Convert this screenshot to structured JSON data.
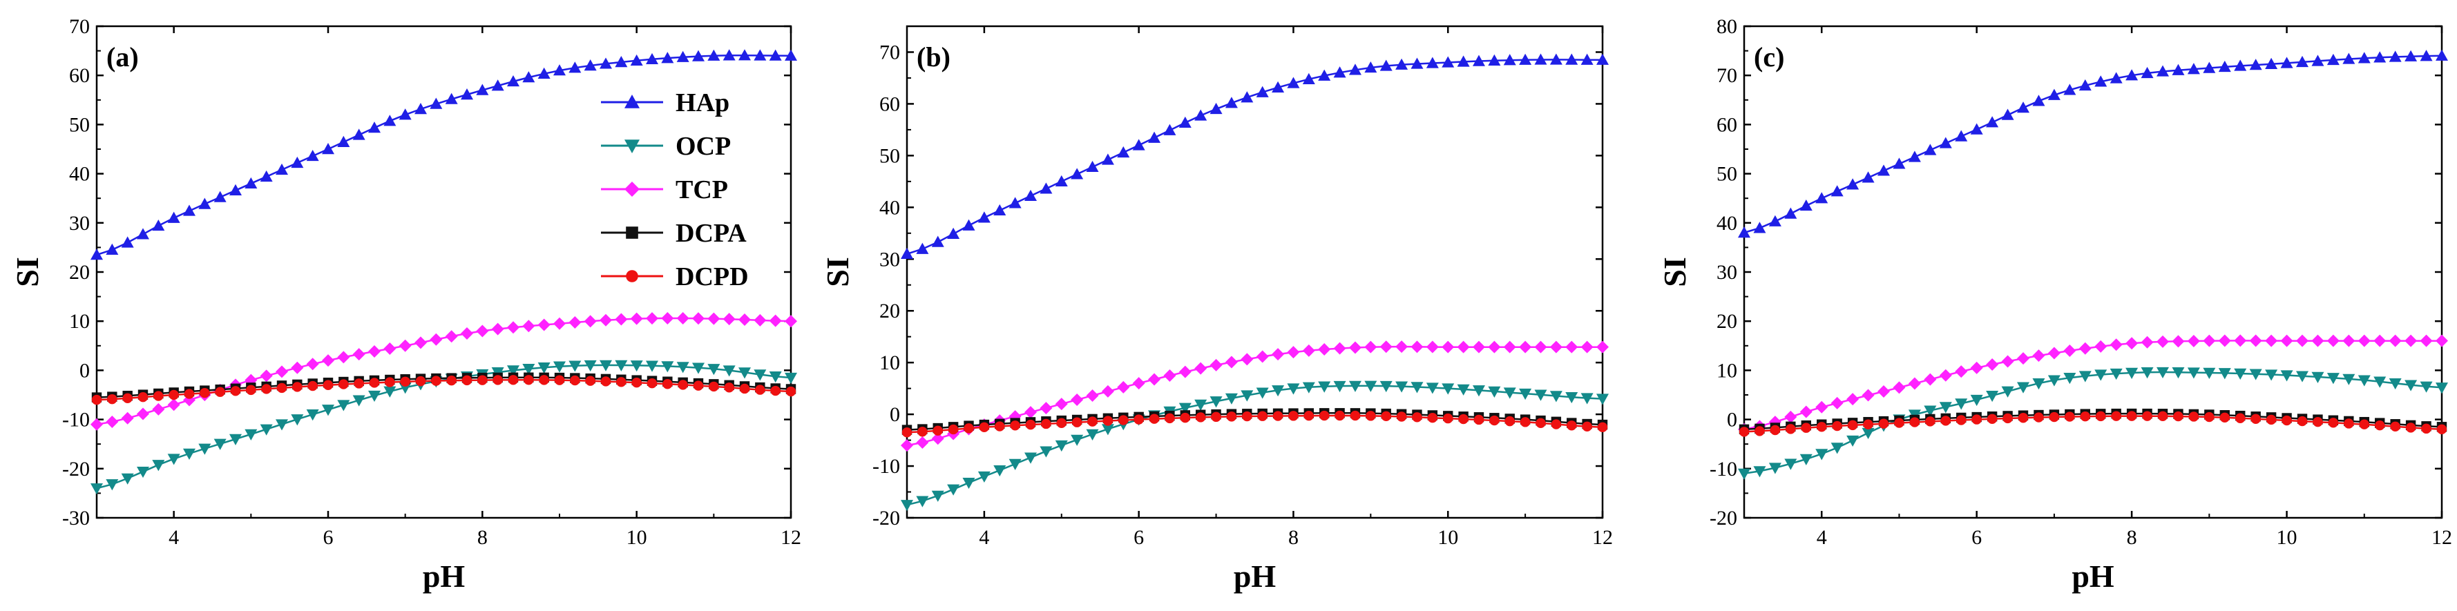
{
  "chart_data": [
    {
      "type": "line",
      "panel_label": "(a)",
      "xlabel": "pH",
      "ylabel": "SI",
      "xlim": [
        3,
        12
      ],
      "ylim": [
        -30,
        70
      ],
      "xticks": [
        4,
        6,
        8,
        10,
        12
      ],
      "yticks": [
        -30,
        -20,
        -10,
        0,
        10,
        20,
        30,
        40,
        50,
        60,
        70
      ],
      "legend": "upper-right",
      "series": [
        {
          "name": "HAp",
          "x": [
            3,
            4,
            5,
            6,
            7,
            8,
            9,
            10,
            11,
            12
          ],
          "values": [
            23.5,
            31,
            38,
            45,
            52,
            57,
            61,
            63,
            64,
            64
          ]
        },
        {
          "name": "OCP",
          "x": [
            3,
            4,
            5,
            6,
            7,
            8,
            9,
            10,
            11,
            12
          ],
          "values": [
            -24,
            -18,
            -13,
            -8,
            -3.5,
            -0.8,
            0.8,
            1,
            0.3,
            -1.5
          ]
        },
        {
          "name": "TCP",
          "x": [
            3,
            4,
            5,
            6,
            7,
            8,
            9,
            10,
            11,
            12
          ],
          "values": [
            -11,
            -7,
            -2,
            2,
            5,
            8,
            9.5,
            10.5,
            10.5,
            10
          ]
        },
        {
          "name": "DCPA",
          "x": [
            3,
            4,
            5,
            6,
            7,
            8,
            9,
            10,
            11,
            12
          ],
          "values": [
            -5.5,
            -4.5,
            -3.5,
            -2.5,
            -1.8,
            -1.5,
            -1.5,
            -2,
            -2.8,
            -3.8
          ]
        },
        {
          "name": "DCPD",
          "x": [
            3,
            4,
            5,
            6,
            7,
            8,
            9,
            10,
            11,
            12
          ],
          "values": [
            -6,
            -5,
            -4,
            -3,
            -2.3,
            -2,
            -2,
            -2.5,
            -3.3,
            -4.3
          ]
        }
      ]
    },
    {
      "type": "line",
      "panel_label": "(b)",
      "xlabel": "pH",
      "ylabel": "SI",
      "xlim": [
        3,
        12
      ],
      "ylim": [
        -20,
        75
      ],
      "xticks": [
        4,
        6,
        8,
        10,
        12
      ],
      "yticks": [
        -20,
        -10,
        0,
        10,
        20,
        30,
        40,
        50,
        60,
        70
      ],
      "series": [
        {
          "name": "HAp",
          "x": [
            3,
            4,
            5,
            6,
            7,
            8,
            9,
            10,
            11,
            12
          ],
          "values": [
            31,
            38,
            45,
            52,
            59,
            64,
            67,
            68,
            68.5,
            68.5
          ]
        },
        {
          "name": "OCP",
          "x": [
            3,
            4,
            5,
            6,
            7,
            8,
            9,
            10,
            11,
            12
          ],
          "values": [
            -17.5,
            -12,
            -6,
            -1,
            2.5,
            5,
            5.5,
            5,
            4,
            3
          ]
        },
        {
          "name": "TCP",
          "x": [
            3,
            4,
            5,
            6,
            7,
            8,
            9,
            10,
            11,
            12
          ],
          "values": [
            -6,
            -2,
            2,
            6,
            9.5,
            12,
            13,
            13,
            13,
            13
          ]
        },
        {
          "name": "DCPA",
          "x": [
            3,
            4,
            5,
            6,
            7,
            8,
            9,
            10,
            11,
            12
          ],
          "values": [
            -3,
            -2,
            -1.2,
            -0.5,
            0,
            0.2,
            0.2,
            -0.3,
            -1,
            -2
          ]
        },
        {
          "name": "DCPD",
          "x": [
            3,
            4,
            5,
            6,
            7,
            8,
            9,
            10,
            11,
            12
          ],
          "values": [
            -3.5,
            -2.5,
            -1.7,
            -1,
            -0.5,
            -0.3,
            -0.3,
            -0.8,
            -1.5,
            -2.5
          ]
        }
      ]
    },
    {
      "type": "line",
      "panel_label": "(c)",
      "xlabel": "pH",
      "ylabel": "SI",
      "xlim": [
        3,
        12
      ],
      "ylim": [
        -20,
        80
      ],
      "xticks": [
        4,
        6,
        8,
        10,
        12
      ],
      "yticks": [
        -20,
        -10,
        0,
        10,
        20,
        30,
        40,
        50,
        60,
        70,
        80
      ],
      "series": [
        {
          "name": "HAp",
          "x": [
            3,
            4,
            5,
            6,
            7,
            8,
            9,
            10,
            11,
            12
          ],
          "values": [
            38,
            45,
            52,
            59,
            66,
            70,
            71.5,
            72.5,
            73.5,
            74
          ]
        },
        {
          "name": "OCP",
          "x": [
            3,
            4,
            5,
            6,
            7,
            8,
            9,
            10,
            11,
            12
          ],
          "values": [
            -11,
            -7,
            0,
            4,
            8,
            9.5,
            9.5,
            9,
            8,
            6.5
          ]
        },
        {
          "name": "TCP",
          "x": [
            3,
            4,
            5,
            6,
            7,
            8,
            9,
            10,
            11,
            12
          ],
          "values": [
            -2,
            2.5,
            6.5,
            10.5,
            13.5,
            15.5,
            16,
            16,
            16,
            16
          ]
        },
        {
          "name": "DCPA",
          "x": [
            3,
            4,
            5,
            6,
            7,
            8,
            9,
            10,
            11,
            12
          ],
          "values": [
            -2,
            -1,
            -0.2,
            0.5,
            1,
            1.2,
            1,
            0.3,
            -0.5,
            -1.5
          ]
        },
        {
          "name": "DCPD",
          "x": [
            3,
            4,
            5,
            6,
            7,
            8,
            9,
            10,
            11,
            12
          ],
          "values": [
            -2.5,
            -1.5,
            -0.7,
            0,
            0.5,
            0.7,
            0.5,
            -0.2,
            -1,
            -2
          ]
        }
      ]
    }
  ],
  "styles": {
    "HAp": {
      "color": "#1f1fe6",
      "marker": "triangle-up"
    },
    "OCP": {
      "color": "#138a8a",
      "marker": "triangle-down"
    },
    "TCP": {
      "color": "#ff22ff",
      "marker": "diamond"
    },
    "DCPA": {
      "color": "#111111",
      "marker": "square"
    },
    "DCPD": {
      "color": "#ee1111",
      "marker": "circle"
    }
  },
  "legend_entries": [
    "HAp",
    "OCP",
    "TCP",
    "DCPA",
    "DCPD"
  ]
}
